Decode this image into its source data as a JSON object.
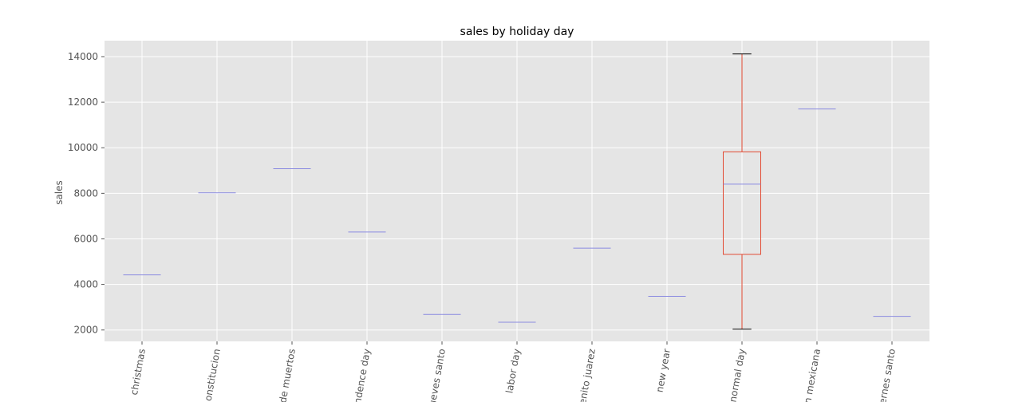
{
  "chart_data": {
    "type": "box",
    "title": "sales by holiday day",
    "xlabel": "",
    "ylabel": "sales",
    "ylim": [
      1500,
      14700
    ],
    "yticks": [
      2000,
      4000,
      6000,
      8000,
      10000,
      12000,
      14000
    ],
    "ytick_labels": [
      "2000",
      "4000",
      "6000",
      "8000",
      "10000",
      "12000",
      "14000"
    ],
    "grid": true,
    "colors": {
      "background": "#e5e5e5",
      "grid": "#ffffff",
      "box": "#e24a33",
      "median": "#8a8ae0",
      "whisker": "#e24a33",
      "cap": "#000000"
    },
    "categories": [
      "christmas",
      "dia constitucion",
      "dia de muertos",
      "independence day",
      "jueves santo",
      "labor day",
      "natalicio benito juarez",
      "new year",
      "normal day",
      "revolucion mexicana",
      "viernes santo"
    ],
    "tick_labels_visible": [
      "christmas",
      "onstitucion",
      "de muertos",
      "ndence day",
      "ueves santo",
      "labor day",
      "enito juarez",
      "new year",
      "normal day",
      "n mexicana",
      "ernes santo"
    ],
    "boxes": [
      {
        "category": "christmas",
        "min": 4420,
        "q1": 4420,
        "median": 4420,
        "q3": 4420,
        "max": 4420
      },
      {
        "category": "dia constitucion",
        "min": 8020,
        "q1": 8020,
        "median": 8020,
        "q3": 8020,
        "max": 8020
      },
      {
        "category": "dia de muertos",
        "min": 9080,
        "q1": 9080,
        "median": 9080,
        "q3": 9080,
        "max": 9080
      },
      {
        "category": "independence day",
        "min": 6300,
        "q1": 6300,
        "median": 6300,
        "q3": 6300,
        "max": 6300
      },
      {
        "category": "jueves santo",
        "min": 2680,
        "q1": 2680,
        "median": 2680,
        "q3": 2680,
        "max": 2680
      },
      {
        "category": "labor day",
        "min": 2340,
        "q1": 2340,
        "median": 2340,
        "q3": 2340,
        "max": 2340
      },
      {
        "category": "natalicio benito juarez",
        "min": 5590,
        "q1": 5590,
        "median": 5590,
        "q3": 5590,
        "max": 5590
      },
      {
        "category": "new year",
        "min": 3480,
        "q1": 3480,
        "median": 3480,
        "q3": 3480,
        "max": 3480
      },
      {
        "category": "normal day",
        "min": 2040,
        "q1": 5320,
        "median": 8400,
        "q3": 9820,
        "max": 14120
      },
      {
        "category": "revolucion mexicana",
        "min": 11700,
        "q1": 11700,
        "median": 11700,
        "q3": 11700,
        "max": 11700
      },
      {
        "category": "viernes santo",
        "min": 2600,
        "q1": 2600,
        "median": 2600,
        "q3": 2600,
        "max": 2600
      }
    ]
  }
}
